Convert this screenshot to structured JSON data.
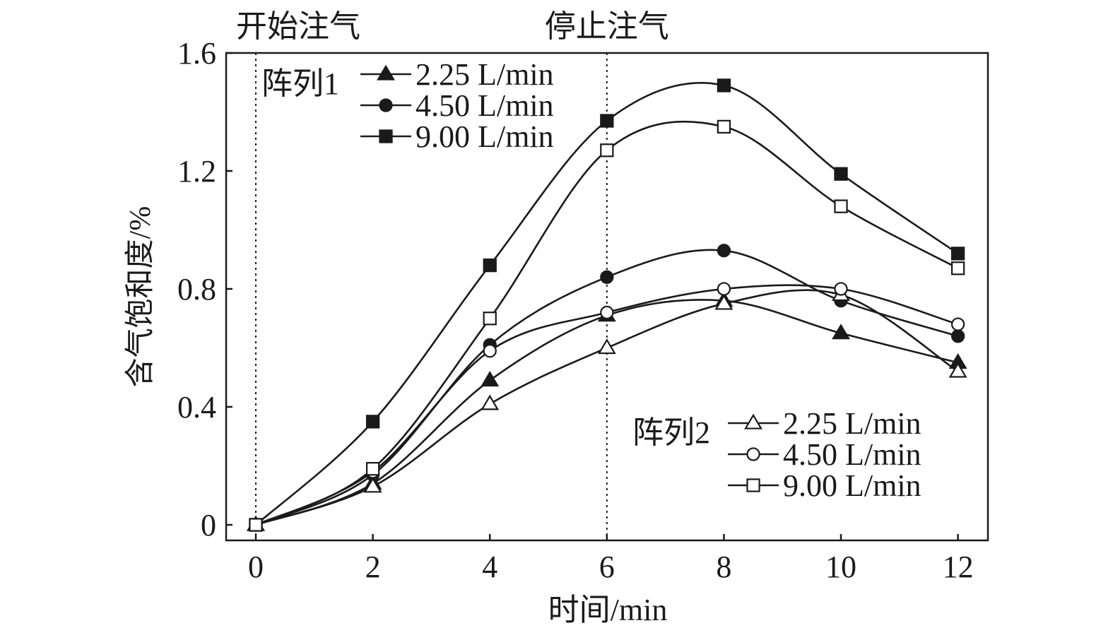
{
  "chart_data": {
    "type": "line",
    "xlabel": "时间/min",
    "ylabel": "含气饱和度/%",
    "xlim": [
      -0.5,
      12.5
    ],
    "ylim": [
      -0.05,
      1.6
    ],
    "x_ticks": [
      "0",
      "2",
      "4",
      "6",
      "8",
      "10",
      "12"
    ],
    "y_ticks": [
      "0",
      "0.4",
      "0.8",
      "1.2",
      "1.6"
    ],
    "grid": false,
    "annotations": [
      {
        "label": "开始注气",
        "x": 0
      },
      {
        "label": "停止注气",
        "x": 6
      }
    ],
    "x": [
      0,
      2,
      4,
      6,
      8,
      10,
      12
    ],
    "legends": [
      {
        "group": "阵列1",
        "placement": "top-left",
        "series_index": [
          0,
          1,
          2
        ]
      },
      {
        "group": "阵列2",
        "placement": "bottom-right",
        "series_index": [
          3,
          4,
          5
        ]
      }
    ],
    "series": [
      {
        "name": "2.25 L/min",
        "group": "阵列1",
        "marker": "triangle",
        "filled": true,
        "values": [
          0,
          0.14,
          0.49,
          0.71,
          0.76,
          0.65,
          0.55
        ]
      },
      {
        "name": "4.50 L/min",
        "group": "阵列1",
        "marker": "circle",
        "filled": true,
        "values": [
          0,
          0.17,
          0.61,
          0.84,
          0.93,
          0.76,
          0.64
        ]
      },
      {
        "name": "9.00 L/min",
        "group": "阵列1",
        "marker": "square",
        "filled": true,
        "values": [
          0,
          0.35,
          0.88,
          1.37,
          1.49,
          1.19,
          0.92
        ]
      },
      {
        "name": "2.25 L/min",
        "group": "阵列2",
        "marker": "triangle",
        "filled": false,
        "values": [
          0,
          0.13,
          0.41,
          0.6,
          0.75,
          0.78,
          0.52
        ]
      },
      {
        "name": "4.50 L/min",
        "group": "阵列2",
        "marker": "circle",
        "filled": false,
        "values": [
          0,
          0.18,
          0.59,
          0.72,
          0.8,
          0.8,
          0.68
        ]
      },
      {
        "name": "9.00 L/min",
        "group": "阵列2",
        "marker": "square",
        "filled": false,
        "values": [
          0,
          0.19,
          0.7,
          1.27,
          1.35,
          1.08,
          0.87
        ]
      }
    ]
  }
}
